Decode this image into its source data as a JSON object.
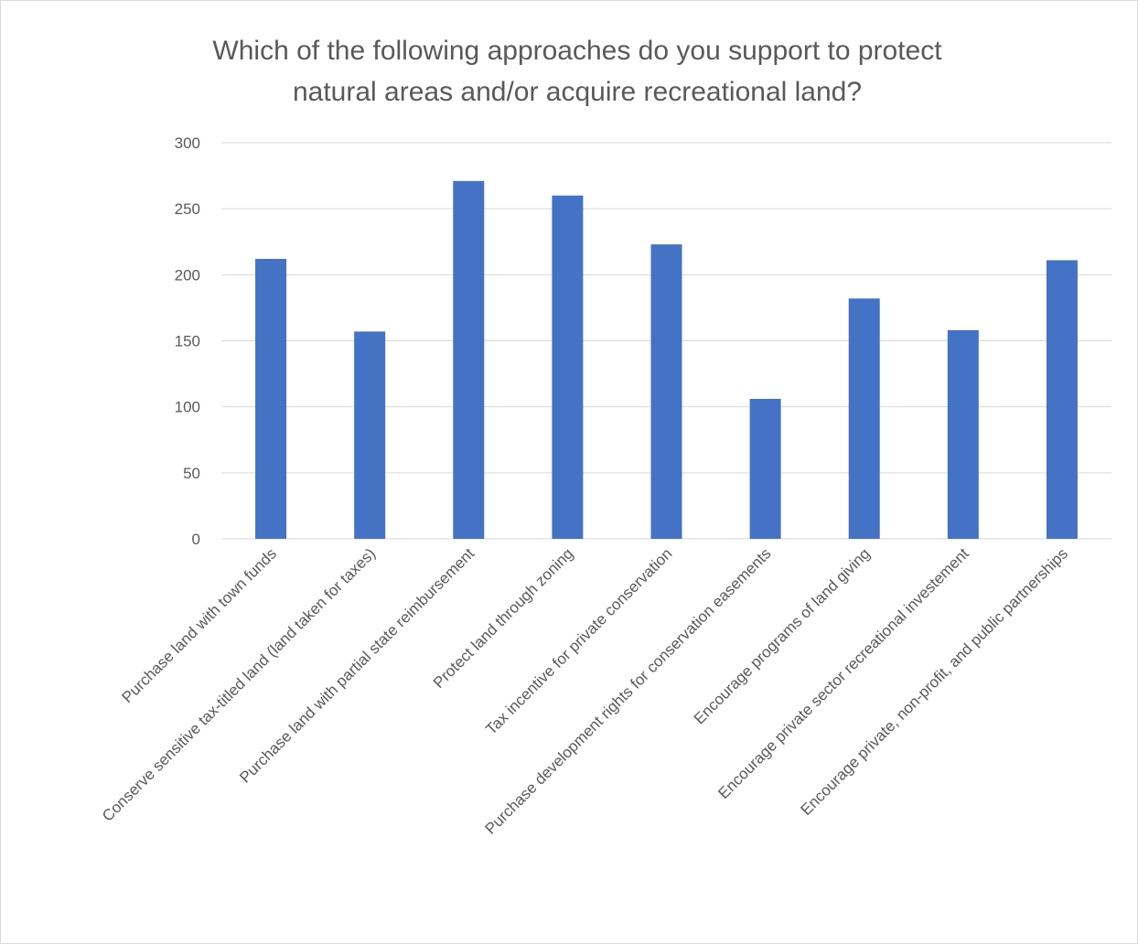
{
  "chart_data": {
    "type": "bar",
    "title_lines": [
      "Which of the following approaches do you support to protect",
      "natural areas and/or acquire recreational land?"
    ],
    "categories": [
      "Purchase land with town funds",
      "Conserve sensitive tax-titled land (land taken for taxes)",
      "Purchase land with partial state reimbursement",
      "Protect land through zoning",
      "Tax incentive for private conservation",
      "Purchase development rights for conservation easements",
      "Encourage programs of land giving",
      "Encourage private sector recreational investement",
      "Encourage private, non-profit, and public partnerships"
    ],
    "values": [
      212,
      157,
      271,
      260,
      223,
      106,
      182,
      158,
      211
    ],
    "ylim": [
      0,
      300
    ],
    "yticks": [
      0,
      50,
      100,
      150,
      200,
      250,
      300
    ],
    "grid": true,
    "legend": "none",
    "xlabel": "",
    "ylabel": "",
    "colors": {
      "bar": "#4472C4",
      "grid": "#d9d9d9",
      "text": "#595959"
    }
  }
}
